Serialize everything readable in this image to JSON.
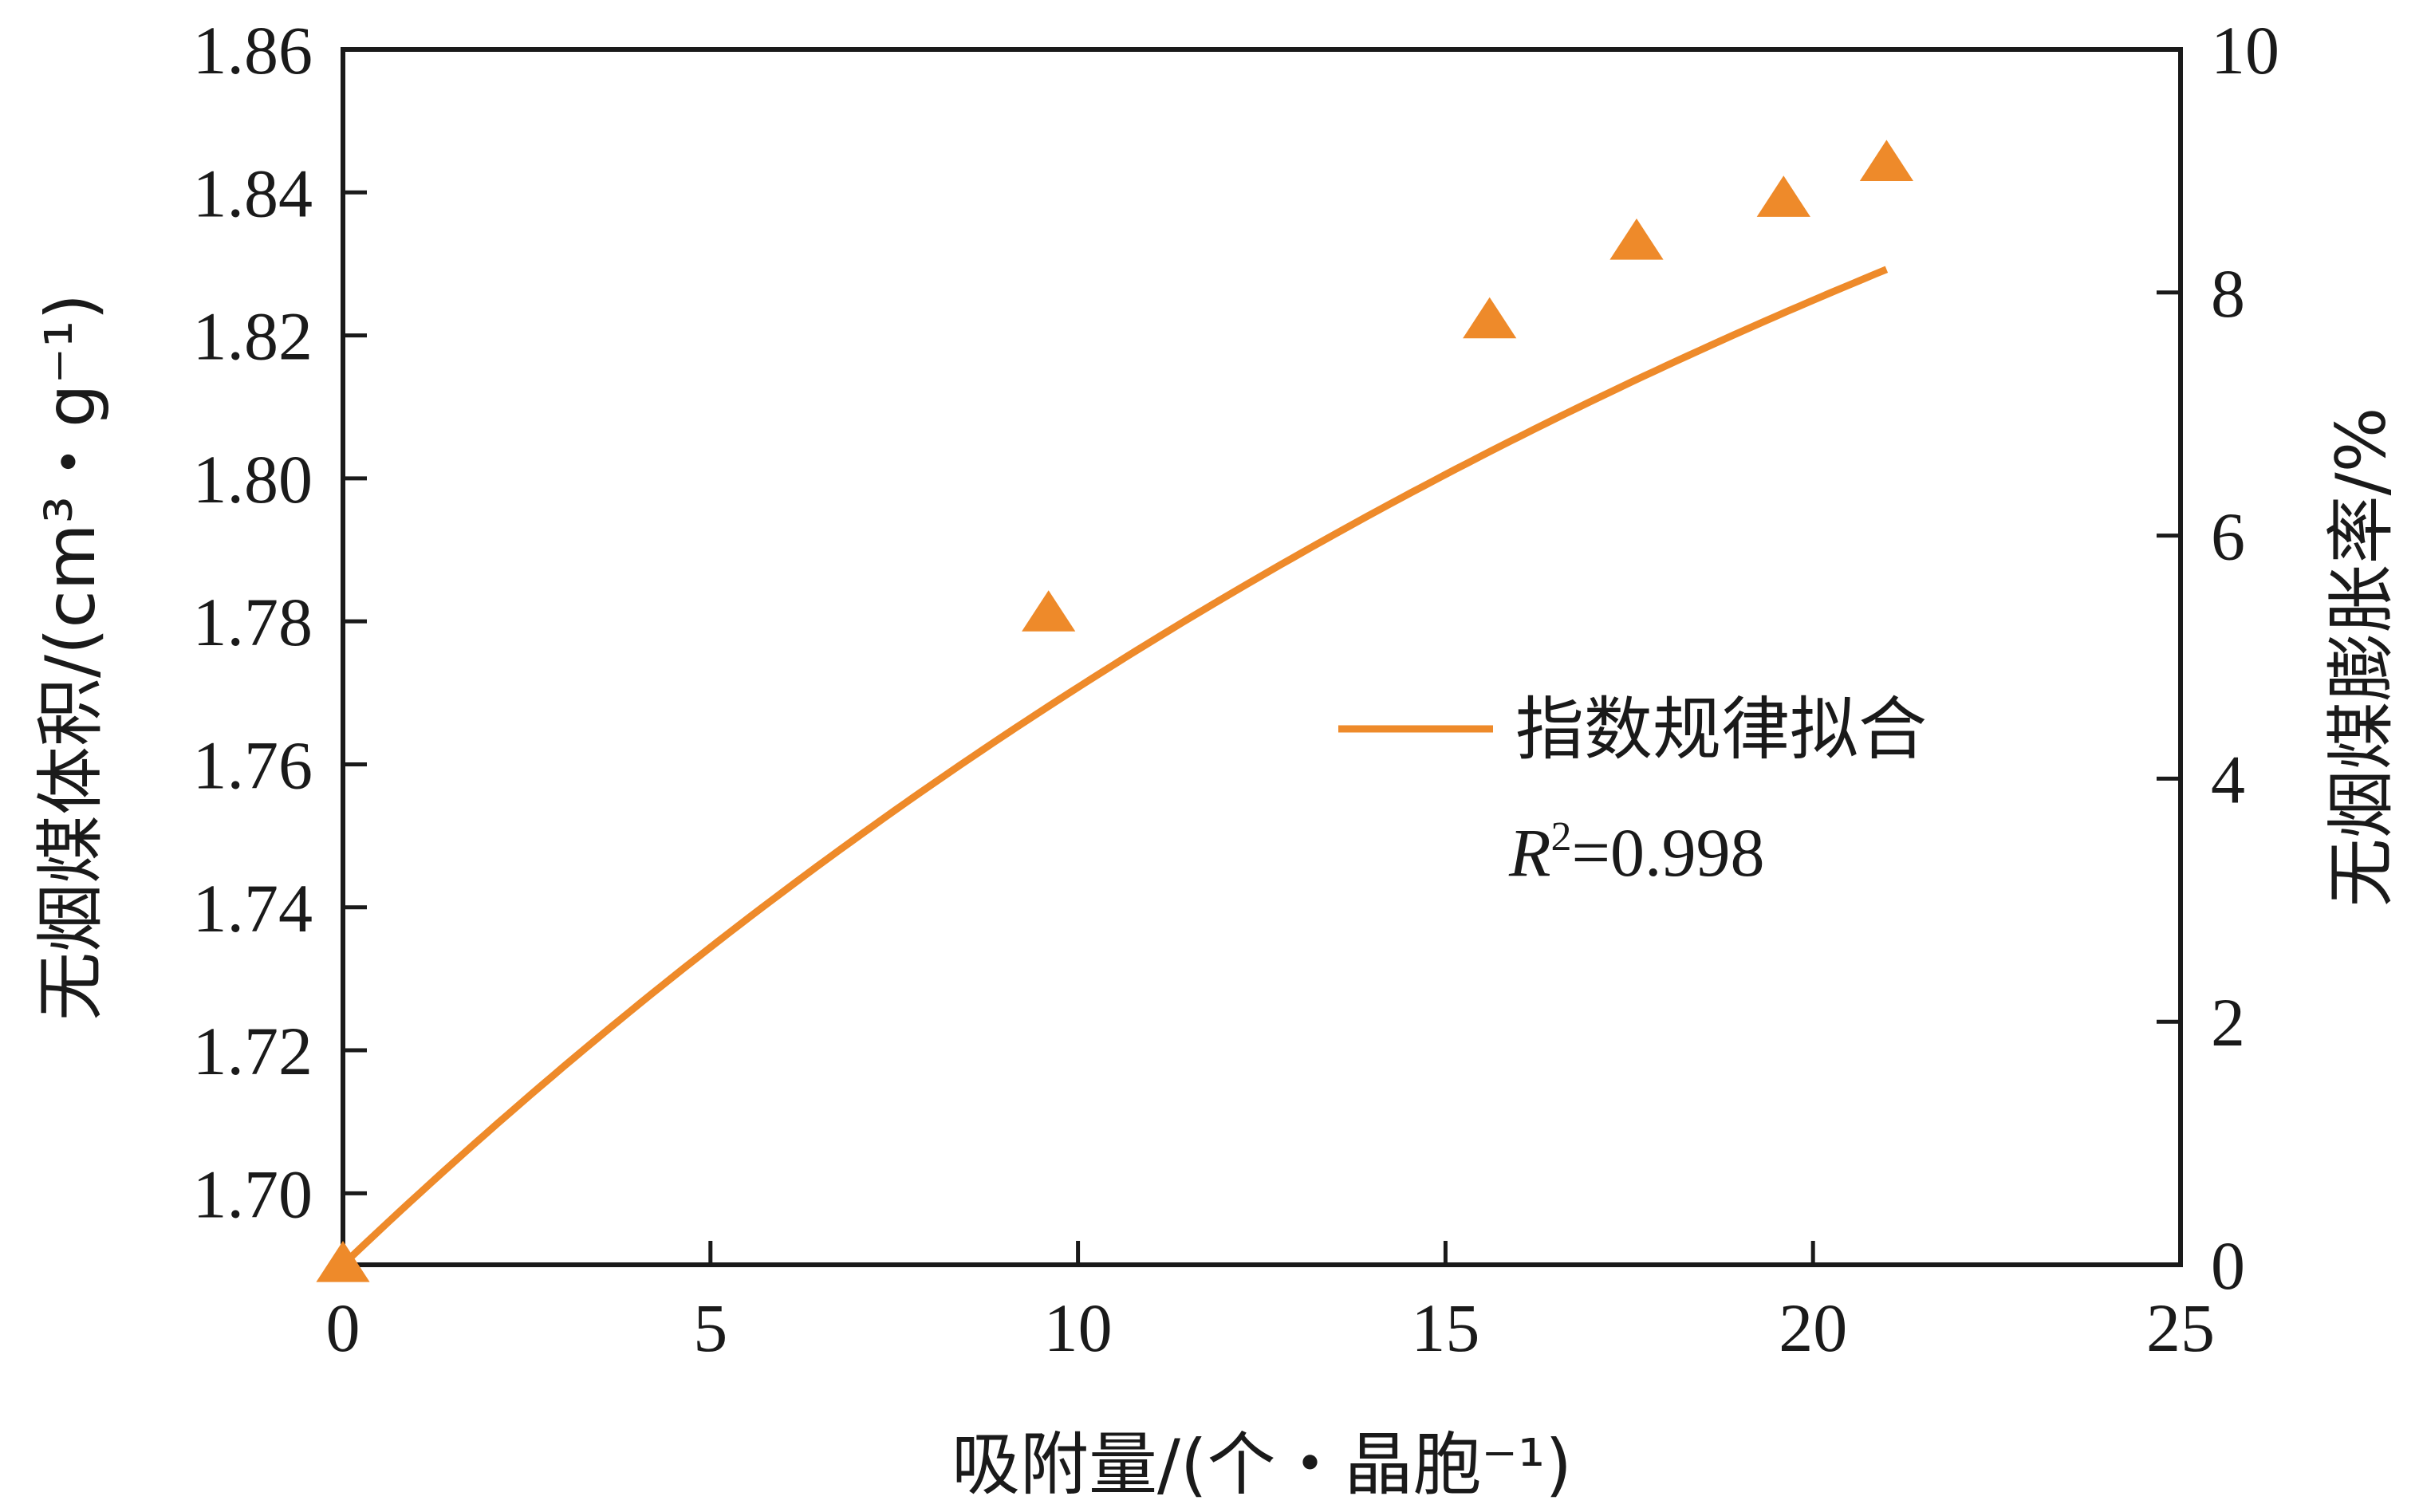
{
  "chart_data": {
    "type": "line",
    "xlabel": "吸附量/(个・晶胞⁻¹)",
    "ylabel_left": "无烟煤体积/(cm³・g⁻¹)",
    "ylabel_right": "无烟煤膨胀率/%",
    "xlim": [
      0,
      25
    ],
    "ylim_left": [
      1.69,
      1.86
    ],
    "ylim_right": [
      0,
      10
    ],
    "x_ticks": [
      "0",
      "5",
      "10",
      "15",
      "20",
      "25"
    ],
    "y_left_ticks": [
      "1.70",
      "1.72",
      "1.74",
      "1.76",
      "1.78",
      "1.80",
      "1.82",
      "1.84",
      "1.86"
    ],
    "y_right_ticks": [
      "0",
      "2",
      "4",
      "6",
      "8",
      "10"
    ],
    "points": [
      {
        "x": 0,
        "y": 1.69
      },
      {
        "x": 9.6,
        "y": 1.781
      },
      {
        "x": 15.6,
        "y": 1.822
      },
      {
        "x": 17.6,
        "y": 1.833
      },
      {
        "x": 19.6,
        "y": 1.839
      },
      {
        "x": 21.0,
        "y": 1.844
      }
    ],
    "fit": {
      "name": "指数规律拟合",
      "model": "y = a - b·exp(-x/t)",
      "a": 1.935,
      "b": 0.245,
      "t": 25.0,
      "r2_label": "R",
      "r2_sup": "2",
      "r2_value": "=0.998"
    },
    "legend_position": "center-right",
    "grid": false,
    "colors": {
      "series": "#ee8a2a",
      "axis": "#1a1a1a"
    }
  }
}
